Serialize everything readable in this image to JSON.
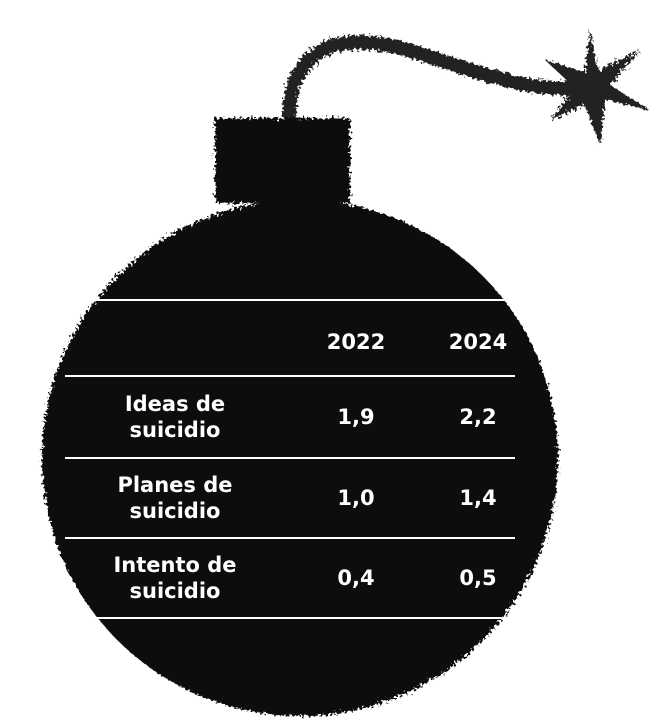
{
  "table": {
    "columns": [
      "2022",
      "2024"
    ],
    "rows": [
      {
        "label": "Ideas de suicidio",
        "values": [
          "1,9",
          "2,2"
        ]
      },
      {
        "label": "Planes de suicidio",
        "values": [
          "1,0",
          "1,4"
        ]
      },
      {
        "label": "Intento de suicidio",
        "values": [
          "0,4",
          "0,5"
        ]
      }
    ]
  }
}
